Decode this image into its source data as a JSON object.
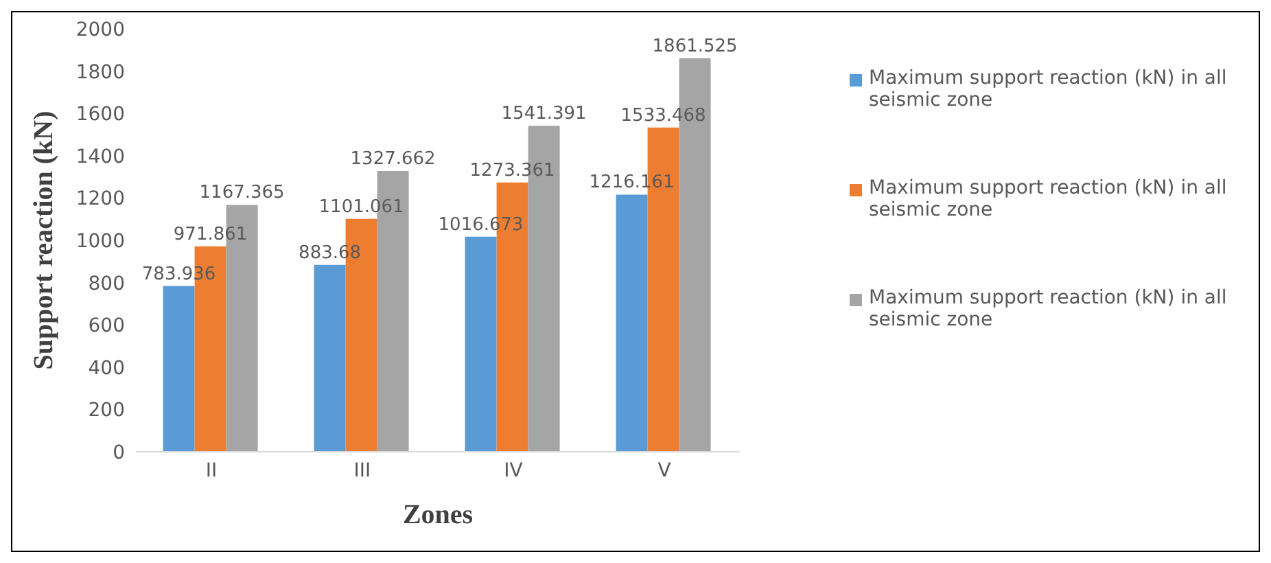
{
  "chart_data": {
    "type": "bar",
    "xlabel": "Zones",
    "ylabel": "Support reaction (kN)",
    "categories": [
      "II",
      "III",
      "IV",
      "V"
    ],
    "series": [
      {
        "name": "Maximum support reaction (kN) in all seismic zone",
        "color": "#5b9bd5",
        "values": [
          783.936,
          883.68,
          1016.673,
          1216.161
        ]
      },
      {
        "name": "Maximum support reaction (kN) in all seismic zone",
        "color": "#ed7d31",
        "values": [
          971.861,
          1101.061,
          1273.361,
          1533.468
        ]
      },
      {
        "name": "Maximum support reaction (kN) in all seismic zone",
        "color": "#a5a5a5",
        "values": [
          1167.365,
          1327.662,
          1541.391,
          1861.525
        ]
      }
    ],
    "ylim": [
      0,
      2000
    ],
    "yticks": [
      0,
      200,
      400,
      600,
      800,
      1000,
      1200,
      1400,
      1600,
      1800,
      2000
    ],
    "grid": false,
    "legend": "right",
    "data_labels": true
  }
}
